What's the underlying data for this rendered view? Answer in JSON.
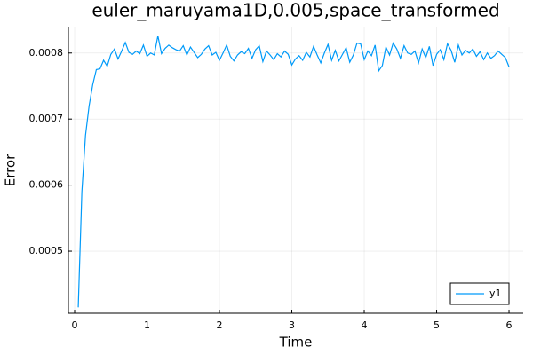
{
  "chart_data": {
    "type": "line",
    "title": "euler_maruyama1D,0.005,space_transformed",
    "x_label": "Time",
    "y_label": "Error",
    "xlim": [
      -0.086,
      6.196
    ],
    "ylim": [
      0.000406,
      0.00084
    ],
    "xticks": [
      0,
      1,
      2,
      3,
      4,
      5,
      6
    ],
    "yticks": [
      0.0005,
      0.0006,
      0.0007,
      0.0008
    ],
    "grid": true,
    "legend": "bottom-right",
    "series": [
      {
        "name": "y1",
        "color": "#009af9",
        "x": [
          0.05,
          0.1,
          0.15,
          0.2,
          0.25,
          0.3,
          0.35,
          0.4,
          0.45,
          0.5,
          0.55,
          0.6,
          0.65,
          0.7,
          0.75,
          0.8,
          0.85,
          0.9,
          0.95,
          1,
          1.05,
          1.1,
          1.15,
          1.2,
          1.25,
          1.3,
          1.35,
          1.4,
          1.45,
          1.5,
          1.55,
          1.6,
          1.65,
          1.7,
          1.75,
          1.8,
          1.85,
          1.9,
          1.95,
          2,
          2.05,
          2.1,
          2.15,
          2.2,
          2.25,
          2.3,
          2.35,
          2.4,
          2.45,
          2.5,
          2.55,
          2.6,
          2.65,
          2.7,
          2.75,
          2.8,
          2.85,
          2.9,
          2.95,
          3,
          3.05,
          3.1,
          3.15,
          3.2,
          3.25,
          3.3,
          3.35,
          3.4,
          3.45,
          3.5,
          3.55,
          3.6,
          3.65,
          3.7,
          3.75,
          3.8,
          3.85,
          3.9,
          3.95,
          4,
          4.05,
          4.1,
          4.15,
          4.2,
          4.25,
          4.3,
          4.35,
          4.4,
          4.45,
          4.5,
          4.55,
          4.6,
          4.65,
          4.7,
          4.75,
          4.8,
          4.85,
          4.9,
          4.95,
          5,
          5.05,
          5.1,
          5.15,
          5.2,
          5.25,
          5.3,
          5.35,
          5.4,
          5.45,
          5.5,
          5.55,
          5.6,
          5.65,
          5.7,
          5.75,
          5.8,
          5.85,
          5.9,
          5.95,
          6
        ],
        "values": [
          0.000415,
          0.00059,
          0.000675,
          0.00072,
          0.000752,
          0.000775,
          0.000776,
          0.000789,
          0.00078,
          0.000798,
          0.000806,
          0.000791,
          0.000803,
          0.000816,
          0.000801,
          0.000798,
          0.000803,
          0.000799,
          0.000812,
          0.000795,
          0.0008,
          0.000797,
          0.000826,
          0.000799,
          0.000807,
          0.000812,
          0.000808,
          0.000805,
          0.000803,
          0.000811,
          0.000797,
          0.000809,
          0.000801,
          0.000793,
          0.000798,
          0.000806,
          0.000811,
          0.000797,
          0.000801,
          0.000789,
          0.0008,
          0.000812,
          0.000795,
          0.000788,
          0.000797,
          0.000802,
          0.000799,
          0.000807,
          0.000792,
          0.000805,
          0.000811,
          0.000787,
          0.000803,
          0.000797,
          0.00079,
          0.000799,
          0.000794,
          0.000803,
          0.000798,
          0.000782,
          0.000791,
          0.000796,
          0.000789,
          0.000801,
          0.000794,
          0.00081,
          0.000797,
          0.000785,
          0.0008,
          0.000813,
          0.000789,
          0.000804,
          0.000788,
          0.000798,
          0.000808,
          0.000786,
          0.000797,
          0.000815,
          0.000814,
          0.00079,
          0.000803,
          0.000796,
          0.000812,
          0.000773,
          0.000781,
          0.000809,
          0.000797,
          0.000815,
          0.000806,
          0.000792,
          0.000811,
          0.0008,
          0.000798,
          0.000803,
          0.000785,
          0.000806,
          0.000793,
          0.00081,
          0.000781,
          0.000798,
          0.000805,
          0.00079,
          0.000814,
          0.000804,
          0.000786,
          0.000812,
          0.000797,
          0.000804,
          0.0008,
          0.000806,
          0.000795,
          0.000802,
          0.00079,
          0.0008,
          0.000792,
          0.000796,
          0.000803,
          0.000798,
          0.000793,
          0.000779
        ]
      }
    ]
  }
}
